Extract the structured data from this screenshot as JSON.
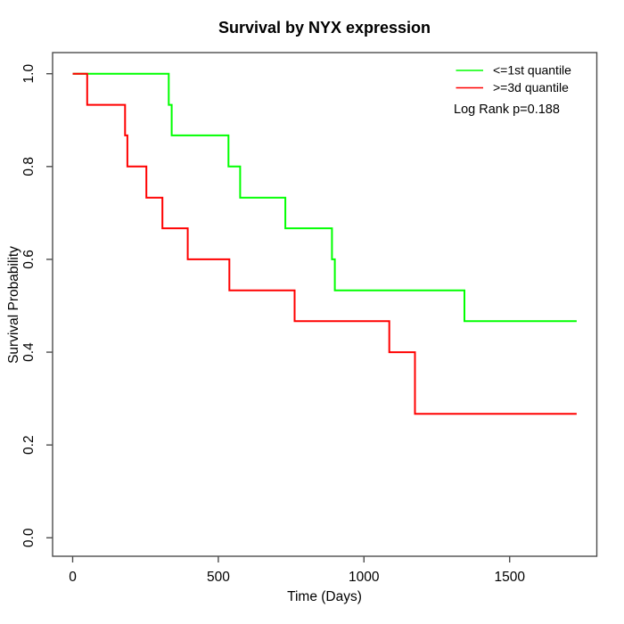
{
  "chart_data": {
    "type": "line",
    "subtype": "kaplan-meier-step",
    "title": "Survival by NYX expression",
    "xlabel": "Time (Days)",
    "ylabel": "Survival Probability",
    "xlim": [
      0,
      1800
    ],
    "ylim": [
      0.0,
      1.0
    ],
    "x_ticks": [
      0,
      500,
      1000,
      1500
    ],
    "y_ticks": [
      0.0,
      0.2,
      0.4,
      0.6,
      0.8,
      1.0
    ],
    "grid": false,
    "legend_position": "top-right",
    "annotation": "Log Rank p=0.188",
    "frame_color": "#4d4d4d",
    "series": [
      {
        "name": "<=1st quantile",
        "color": "#00ff00",
        "points": [
          [
            0,
            1.0
          ],
          [
            330,
            1.0
          ],
          [
            330,
            0.933
          ],
          [
            340,
            0.933
          ],
          [
            340,
            0.867
          ],
          [
            535,
            0.867
          ],
          [
            535,
            0.8
          ],
          [
            575,
            0.8
          ],
          [
            575,
            0.733
          ],
          [
            730,
            0.733
          ],
          [
            730,
            0.667
          ],
          [
            890,
            0.667
          ],
          [
            890,
            0.6
          ],
          [
            900,
            0.6
          ],
          [
            900,
            0.533
          ],
          [
            1345,
            0.533
          ],
          [
            1345,
            0.467
          ],
          [
            1730,
            0.467
          ]
        ]
      },
      {
        "name": ">=3d quantile",
        "color": "#ff0000",
        "points": [
          [
            0,
            1.0
          ],
          [
            50,
            1.0
          ],
          [
            50,
            0.933
          ],
          [
            180,
            0.933
          ],
          [
            180,
            0.867
          ],
          [
            188,
            0.867
          ],
          [
            188,
            0.8
          ],
          [
            253,
            0.8
          ],
          [
            253,
            0.733
          ],
          [
            308,
            0.733
          ],
          [
            308,
            0.667
          ],
          [
            395,
            0.667
          ],
          [
            395,
            0.6
          ],
          [
            538,
            0.6
          ],
          [
            538,
            0.533
          ],
          [
            762,
            0.533
          ],
          [
            762,
            0.467
          ],
          [
            1087,
            0.467
          ],
          [
            1087,
            0.4
          ],
          [
            1175,
            0.4
          ],
          [
            1175,
            0.267
          ],
          [
            1730,
            0.267
          ]
        ]
      }
    ]
  }
}
